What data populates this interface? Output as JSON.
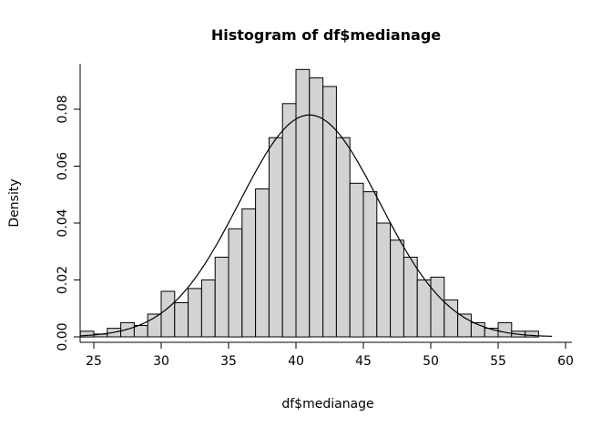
{
  "chart_data": {
    "type": "bar",
    "subtype": "histogram",
    "title": "Histogram of df$medianage",
    "xlabel": "df$medianage",
    "ylabel": "Density",
    "bin_start": 24,
    "bin_width": 1,
    "bins": [
      0.002,
      0.001,
      0.003,
      0.005,
      0.004,
      0.008,
      0.016,
      0.012,
      0.017,
      0.02,
      0.028,
      0.038,
      0.045,
      0.052,
      0.07,
      0.082,
      0.094,
      0.091,
      0.088,
      0.07,
      0.054,
      0.051,
      0.04,
      0.034,
      0.028,
      0.02,
      0.021,
      0.013,
      0.008,
      0.005,
      0.003,
      0.005,
      0.002,
      0.002
    ],
    "x_ticks": [
      25,
      30,
      35,
      40,
      45,
      50,
      55,
      60
    ],
    "y_ticks": [
      0.0,
      0.02,
      0.04,
      0.06,
      0.08
    ],
    "y_tick_labels": [
      "0.00",
      "0.02",
      "0.04",
      "0.06",
      "0.08"
    ],
    "xlim": [
      23,
      60
    ],
    "ylim": [
      0,
      0.098
    ],
    "bar_fill": "#d3d3d3",
    "bar_stroke": "#000000",
    "axis_color": "#000000",
    "curve": {
      "type": "normal",
      "mean": 41,
      "sd": 5.2,
      "peak": 0.078,
      "from": 24,
      "to": 59
    },
    "grid": "off",
    "legend": "none"
  }
}
